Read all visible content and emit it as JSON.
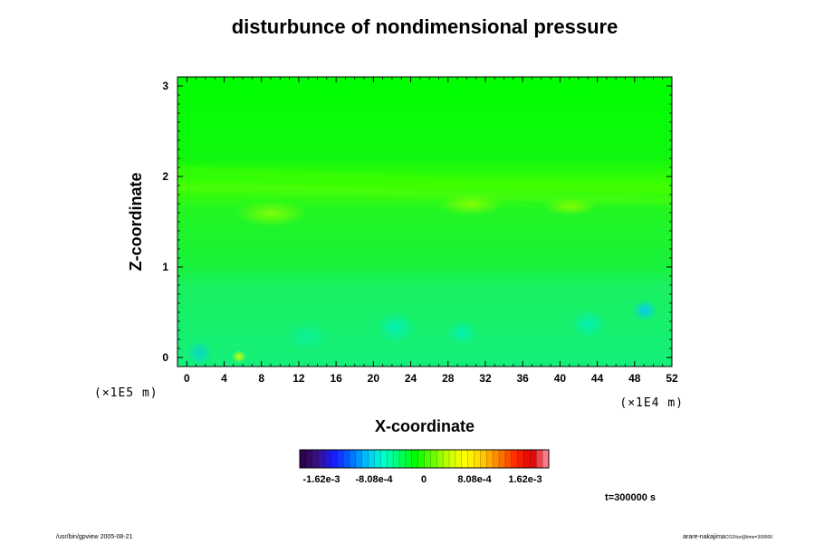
{
  "chart_data": {
    "type": "heatmap",
    "title": "disturbunce of nondimensional pressure",
    "xlabel": "X-coordinate",
    "ylabel": "Z-coordinate",
    "x_unit_label": "(×1E4 m)",
    "y_unit_label": "(×1E5 m)",
    "x_ticks": [
      "0",
      "4",
      "8",
      "12",
      "16",
      "20",
      "24",
      "28",
      "32",
      "36",
      "40",
      "44",
      "48",
      "52"
    ],
    "x_tick_values": [
      0,
      4,
      8,
      12,
      16,
      20,
      24,
      28,
      32,
      36,
      40,
      44,
      48,
      52
    ],
    "y_ticks": [
      "0",
      "1",
      "2",
      "3"
    ],
    "y_tick_values": [
      0,
      1,
      2,
      3
    ],
    "xlim": [
      -1,
      52
    ],
    "ylim": [
      -0.1,
      3.1
    ],
    "grid": false,
    "field_description_color_range": {
      "min": -0.00162,
      "max": 0.00162
    },
    "dominant_value": 0,
    "colorbar": {
      "labels": [
        "-1.62e-3",
        "-8.08e-4",
        "0",
        "8.08e-4",
        "1.62e-3"
      ],
      "values": [
        -0.00162,
        -0.000808,
        0,
        0.000808,
        0.00162
      ],
      "colors": [
        "#2a0040",
        "#3a1080",
        "#1a1aff",
        "#0066ff",
        "#00bfff",
        "#00ffd0",
        "#00ff66",
        "#00ff00",
        "#66ff00",
        "#ccff00",
        "#ffff00",
        "#ffcc00",
        "#ff7f00",
        "#ff2a00",
        "#e00000",
        "#ff99aa"
      ]
    },
    "time_label": "t=300000 s"
  },
  "footer": {
    "left": "/usr/bin/gpview 2005-08-21",
    "right_main": "arare-nakajima",
    "right_sub": "CO2/ice@time=300000"
  }
}
